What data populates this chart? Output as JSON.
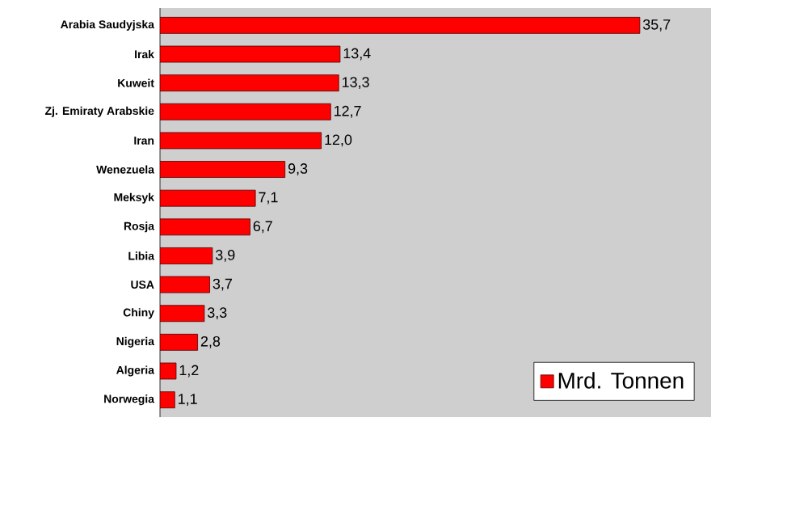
{
  "chart_data": {
    "type": "bar",
    "orientation": "horizontal",
    "categories": [
      "Arabia Saudyjska",
      "Irak",
      "Kuweit",
      "Zj. Emiraty Arabskie",
      "Iran",
      "Wenezuela",
      "Meksyk",
      "Rosja",
      "Libia",
      "USA",
      "Chiny",
      "Nigeria",
      "Algeria",
      "Norwegia"
    ],
    "series": [
      {
        "name": "Mrd. Tonnen",
        "color": "#ff0000",
        "values": [
          35.7,
          13.4,
          13.3,
          12.7,
          12.0,
          9.3,
          7.1,
          6.7,
          3.9,
          3.7,
          3.3,
          2.8,
          1.2,
          1.1
        ],
        "value_labels": [
          "35,7",
          "13,4",
          "13,3",
          "12,7",
          "12,0",
          "9,3",
          "7,1",
          "6,7",
          "3,9",
          "3,7",
          "3,3",
          "2,8",
          "1,2",
          "1,1"
        ]
      }
    ],
    "xlim": [
      0,
      41
    ],
    "legend": "bottom right"
  }
}
